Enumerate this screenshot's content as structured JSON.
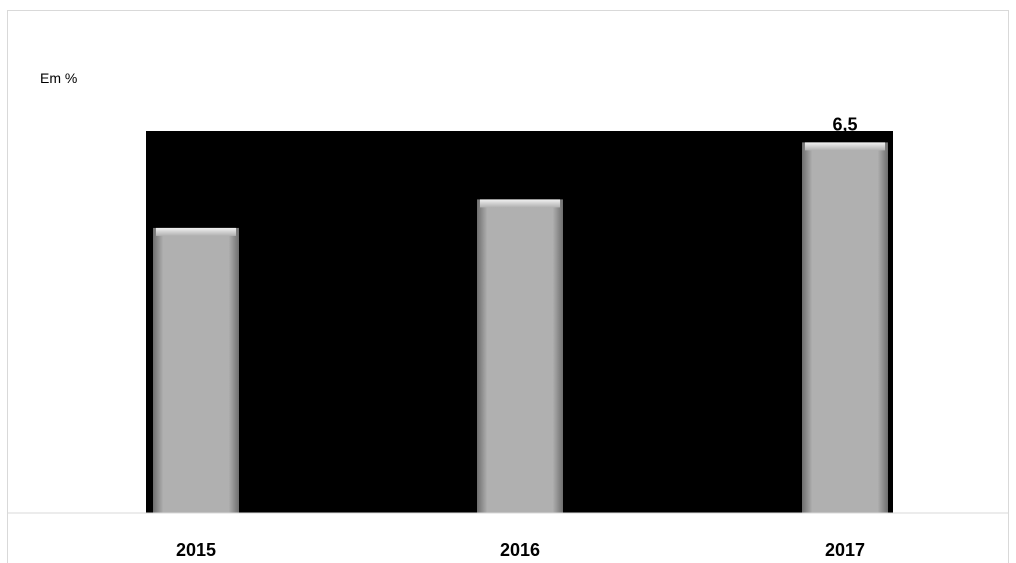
{
  "chart_data": {
    "type": "bar",
    "unit_label": "Em %",
    "categories": [
      "2015",
      "2016",
      "2017"
    ],
    "values": [
      5.0,
      5.5,
      6.5
    ],
    "data_labels": [
      "",
      "",
      "6,5"
    ],
    "ylim": [
      0,
      6.7
    ],
    "grid": false,
    "legend": "none",
    "colors": {
      "plot_background": "#000000",
      "bar": "#b0b0b0",
      "bar_highlight": "#e6e6e6",
      "bar_shadow": "#6e6e6e",
      "axis": "#d9d9d9"
    }
  }
}
